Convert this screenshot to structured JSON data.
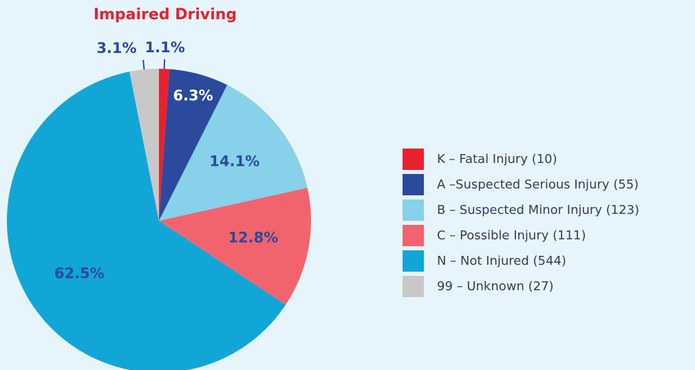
{
  "chart_data": {
    "type": "pie",
    "title": "Impaired Driving",
    "categories": [
      "K – Fatal Injury (10)",
      "A –Suspected Serious Injury (55)",
      "B – Suspected Minor Injury (123)",
      "C – Possible Injury (111)",
      "N – Not Injured (544)",
      "99 – Unknown (27)"
    ],
    "values": [
      1.1,
      6.3,
      14.1,
      12.8,
      62.5,
      3.1
    ],
    "value_labels": [
      "1.1%",
      "6.3%",
      "14.1%",
      "12.8%",
      "62.5%",
      "3.1%"
    ],
    "colors": [
      "#e8212e",
      "#2b4a9e",
      "#87d1ea",
      "#f1646e",
      "#12a6d6",
      "#c8c8c8"
    ],
    "label_colors": [
      "#2b4a9e",
      "#ffffff",
      "#2b4a9e",
      "#2b4a9e",
      "#2b4a9e",
      "#2b4a9e"
    ],
    "legend": "right"
  }
}
